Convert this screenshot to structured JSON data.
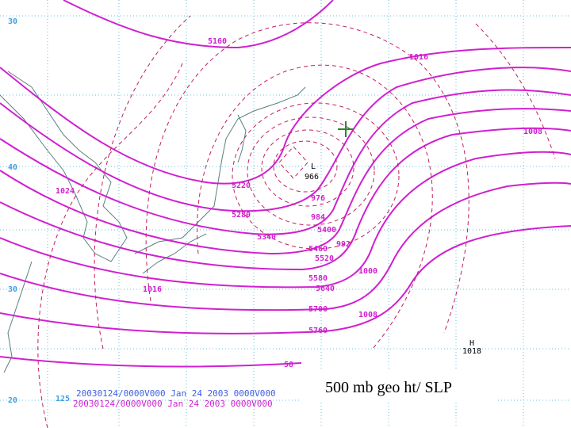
{
  "map": {
    "latitude_labels": [
      "30",
      "40",
      "30",
      "20"
    ],
    "longitude_label": "125",
    "height_contour_labels": [
      "5160",
      "5220",
      "5280",
      "5340",
      "5400",
      "5460",
      "5520",
      "5580",
      "5640",
      "5700",
      "5760",
      "58"
    ],
    "pressure_contour_labels": [
      "1016",
      "1008",
      "966",
      "1024",
      "976",
      "984",
      "992",
      "1000",
      "1016",
      "1008"
    ],
    "high_center": {
      "symbol": "H",
      "label": "1018"
    },
    "low_center_symbol": "L",
    "timestamps": [
      "20030124/0000V000 Jan 24 2003 0000V000",
      "20030124/0000V000 Jan 24 2003 0000V000"
    ],
    "caption": "500 mb geo ht/ SLP"
  }
}
